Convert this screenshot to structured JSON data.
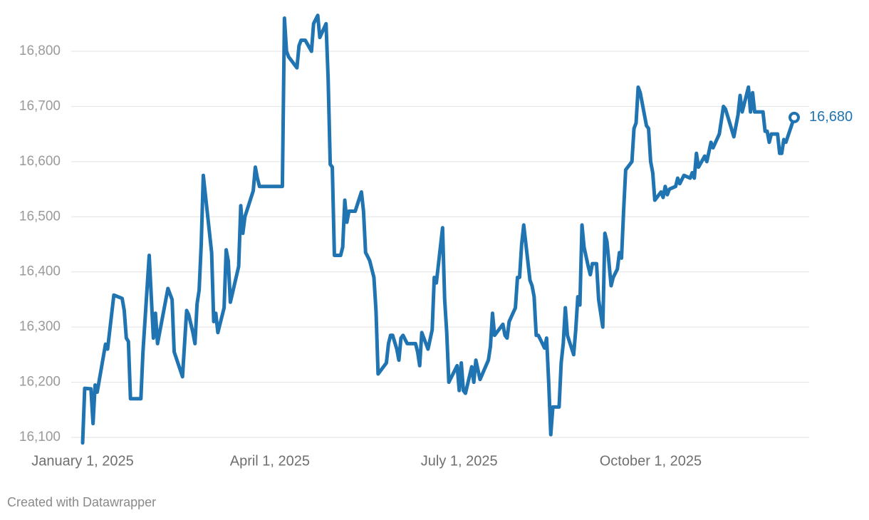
{
  "chart_data": {
    "type": "line",
    "x": [
      "2025-01-01",
      "2025-01-02",
      "2025-01-05",
      "2025-01-06",
      "2025-01-07",
      "2025-01-08",
      "2025-01-12",
      "2025-01-13",
      "2025-01-16",
      "2025-01-20",
      "2025-01-21",
      "2025-01-22",
      "2025-01-23",
      "2025-01-24",
      "2025-01-29",
      "2025-01-30",
      "2025-02-02",
      "2025-02-04",
      "2025-02-05",
      "2025-02-06",
      "2025-02-09",
      "2025-02-11",
      "2025-02-13",
      "2025-02-14",
      "2025-02-18",
      "2025-02-20",
      "2025-02-21",
      "2025-02-23",
      "2025-02-24",
      "2025-02-25",
      "2025-02-26",
      "2025-02-27",
      "2025-02-28",
      "2025-03-04",
      "2025-03-05",
      "2025-03-06",
      "2025-03-07",
      "2025-03-10",
      "2025-03-11",
      "2025-03-12",
      "2025-03-13",
      "2025-03-17",
      "2025-03-18",
      "2025-03-19",
      "2025-03-20",
      "2025-03-24",
      "2025-03-25",
      "2025-03-26",
      "2025-03-27",
      "2025-04-07",
      "2025-04-08",
      "2025-04-09",
      "2025-04-10",
      "2025-04-14",
      "2025-04-15",
      "2025-04-16",
      "2025-04-18",
      "2025-04-21",
      "2025-04-22",
      "2025-04-24",
      "2025-04-25",
      "2025-04-28",
      "2025-04-29",
      "2025-04-30",
      "2025-05-01",
      "2025-05-02",
      "2025-05-05",
      "2025-05-06",
      "2025-05-07",
      "2025-05-08",
      "2025-05-09",
      "2025-05-12",
      "2025-05-15",
      "2025-05-16",
      "2025-05-17",
      "2025-05-18",
      "2025-05-19",
      "2025-05-21",
      "2025-05-22",
      "2025-05-23",
      "2025-05-27",
      "2025-05-28",
      "2025-05-29",
      "2025-05-30",
      "2025-06-01",
      "2025-06-02",
      "2025-06-03",
      "2025-06-04",
      "2025-06-06",
      "2025-06-10",
      "2025-06-11",
      "2025-06-12",
      "2025-06-13",
      "2025-06-16",
      "2025-06-18",
      "2025-06-19",
      "2025-06-20",
      "2025-06-23",
      "2025-06-24",
      "2025-06-25",
      "2025-06-26",
      "2025-06-30",
      "2025-07-01",
      "2025-07-02",
      "2025-07-03",
      "2025-07-04",
      "2025-07-07",
      "2025-07-08",
      "2025-07-09",
      "2025-07-11",
      "2025-07-15",
      "2025-07-16",
      "2025-07-17",
      "2025-07-18",
      "2025-07-22",
      "2025-07-23",
      "2025-07-24",
      "2025-07-25",
      "2025-07-28",
      "2025-07-29",
      "2025-07-30",
      "2025-07-31",
      "2025-08-01",
      "2025-08-04",
      "2025-08-05",
      "2025-08-06",
      "2025-08-07",
      "2025-08-08",
      "2025-08-10",
      "2025-08-11",
      "2025-08-12",
      "2025-08-13",
      "2025-08-14",
      "2025-08-15",
      "2025-08-18",
      "2025-08-19",
      "2025-08-20",
      "2025-08-21",
      "2025-08-22",
      "2025-08-25",
      "2025-08-26",
      "2025-08-27",
      "2025-08-28",
      "2025-08-29",
      "2025-08-30",
      "2025-09-01",
      "2025-09-02",
      "2025-09-03",
      "2025-09-05",
      "2025-09-06",
      "2025-09-08",
      "2025-09-09",
      "2025-09-10",
      "2025-09-12",
      "2025-09-13",
      "2025-09-15",
      "2025-09-16",
      "2025-09-17",
      "2025-09-18",
      "2025-09-19",
      "2025-09-22",
      "2025-09-23",
      "2025-09-24",
      "2025-09-25",
      "2025-09-26",
      "2025-09-29",
      "2025-09-30",
      "2025-10-01",
      "2025-10-02",
      "2025-10-03",
      "2025-10-06",
      "2025-10-07",
      "2025-10-08",
      "2025-10-09",
      "2025-10-10",
      "2025-10-13",
      "2025-10-14",
      "2025-10-15",
      "2025-10-17",
      "2025-10-20",
      "2025-10-21",
      "2025-10-22",
      "2025-10-23",
      "2025-10-24",
      "2025-10-27",
      "2025-10-28",
      "2025-10-30",
      "2025-10-31",
      "2025-11-03",
      "2025-11-05",
      "2025-11-06",
      "2025-11-10",
      "2025-11-12",
      "2025-11-13",
      "2025-11-14",
      "2025-11-17",
      "2025-11-18",
      "2025-11-19",
      "2025-11-20",
      "2025-11-24",
      "2025-11-25",
      "2025-11-26",
      "2025-11-27",
      "2025-11-28",
      "2025-12-01",
      "2025-12-02",
      "2025-12-03",
      "2025-12-04",
      "2025-12-05",
      "2025-12-09"
    ],
    "series": [
      {
        "color": "#1f74b1",
        "end_label": "16,680",
        "values": [
          16090,
          16189,
          16188,
          16125,
          16195,
          16182,
          16269,
          16260,
          16358,
          16352,
          16330,
          16280,
          16274,
          16170,
          16170,
          16255,
          16430,
          16280,
          16325,
          16270,
          16330,
          16370,
          16350,
          16255,
          16210,
          16330,
          16322,
          16290,
          16270,
          16342,
          16367,
          16450,
          16575,
          16435,
          16310,
          16325,
          16290,
          16335,
          16440,
          16420,
          16345,
          16410,
          16520,
          16470,
          16500,
          16547,
          16590,
          16570,
          16555,
          16555,
          16860,
          16800,
          16790,
          16770,
          16810,
          16820,
          16820,
          16800,
          16850,
          16865,
          16825,
          16850,
          16750,
          16595,
          16590,
          16430,
          16430,
          16445,
          16530,
          16490,
          16510,
          16510,
          16545,
          16510,
          16435,
          16428,
          16420,
          16390,
          16330,
          16215,
          16235,
          16270,
          16285,
          16285,
          16260,
          16240,
          16280,
          16285,
          16270,
          16270,
          16255,
          16230,
          16290,
          16260,
          16295,
          16390,
          16380,
          16480,
          16350,
          16290,
          16200,
          16230,
          16185,
          16235,
          16185,
          16180,
          16228,
          16200,
          16240,
          16205,
          16240,
          16265,
          16325,
          16285,
          16305,
          16285,
          16280,
          16310,
          16335,
          16390,
          16390,
          16450,
          16485,
          16385,
          16375,
          16355,
          16285,
          16285,
          16270,
          16262,
          16280,
          16200,
          16105,
          16155,
          16155,
          16235,
          16270,
          16335,
          16285,
          16250,
          16295,
          16355,
          16340,
          16485,
          16445,
          16410,
          16395,
          16415,
          16415,
          16350,
          16300,
          16470,
          16455,
          16375,
          16390,
          16405,
          16435,
          16425,
          16510,
          16585,
          16600,
          16660,
          16670,
          16735,
          16725,
          16665,
          16660,
          16600,
          16580,
          16530,
          16545,
          16535,
          16555,
          16540,
          16550,
          16555,
          16570,
          16560,
          16575,
          16570,
          16580,
          16570,
          16615,
          16590,
          16610,
          16600,
          16635,
          16625,
          16650,
          16700,
          16695,
          16645,
          16685,
          16720,
          16690,
          16735,
          16690,
          16725,
          16690,
          16690,
          16655,
          16655,
          16635,
          16650,
          16650,
          16615,
          16615,
          16640,
          16635,
          16680
        ]
      }
    ],
    "xlim": [
      "2025-01-01",
      "2025-12-09"
    ],
    "xticks": [
      {
        "value": "2025-01-01",
        "label": "January 1, 2025"
      },
      {
        "value": "2025-04-01",
        "label": "April 1, 2025"
      },
      {
        "value": "2025-07-01",
        "label": "July 1, 2025"
      },
      {
        "value": "2025-10-01",
        "label": "October 1, 2025"
      }
    ],
    "ylim": [
      16080,
      16870
    ],
    "yticks": [
      {
        "value": 16100,
        "label": "16,100"
      },
      {
        "value": 16200,
        "label": "16,200"
      },
      {
        "value": 16300,
        "label": "16,300"
      },
      {
        "value": 16400,
        "label": "16,400"
      },
      {
        "value": 16500,
        "label": "16,500"
      },
      {
        "value": 16600,
        "label": "16,600"
      },
      {
        "value": 16700,
        "label": "16,700"
      },
      {
        "value": 16800,
        "label": "16,800"
      }
    ],
    "grid": true,
    "footer": "Created with Datawrapper"
  }
}
